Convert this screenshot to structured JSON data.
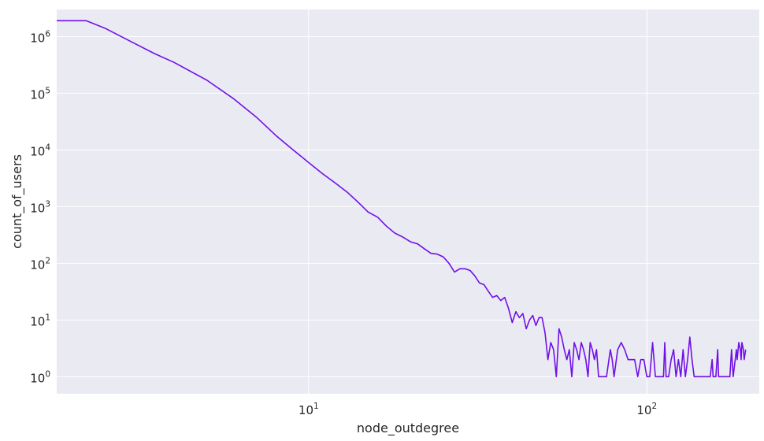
{
  "chart_data": {
    "type": "line",
    "title": "",
    "xlabel": "node_outdegree",
    "ylabel": "count_of_users",
    "x_scale": "log",
    "y_scale": "log",
    "xlim": [
      1.8,
      215
    ],
    "ylim": [
      0.5,
      3000000
    ],
    "x_ticks": [
      {
        "value": 10,
        "base": "10",
        "exp": "1"
      },
      {
        "value": 100,
        "base": "10",
        "exp": "2"
      }
    ],
    "y_ticks": [
      {
        "value": 1,
        "base": "10",
        "exp": "0"
      },
      {
        "value": 10,
        "base": "10",
        "exp": "1"
      },
      {
        "value": 100,
        "base": "10",
        "exp": "2"
      },
      {
        "value": 1000,
        "base": "10",
        "exp": "3"
      },
      {
        "value": 10000,
        "base": "10",
        "exp": "4"
      },
      {
        "value": 100000,
        "base": "10",
        "exp": "5"
      },
      {
        "value": 1000000,
        "base": "10",
        "exp": "6"
      }
    ],
    "grid": true,
    "background": "#EAEAF2",
    "series": [
      {
        "color": "#7010E8",
        "points": [
          [
            1.8,
            1900000
          ],
          [
            2,
            1900000
          ],
          [
            2.2,
            1900000
          ],
          [
            2.5,
            1400000
          ],
          [
            3,
            800000
          ],
          [
            3.5,
            500000
          ],
          [
            4,
            350000
          ],
          [
            5,
            170000
          ],
          [
            6,
            80000
          ],
          [
            7,
            38000
          ],
          [
            8,
            18000
          ],
          [
            9,
            10000
          ],
          [
            10,
            6000
          ],
          [
            11,
            3800
          ],
          [
            12,
            2600
          ],
          [
            13,
            1800
          ],
          [
            14,
            1200
          ],
          [
            15,
            800
          ],
          [
            16,
            650
          ],
          [
            17,
            450
          ],
          [
            18,
            340
          ],
          [
            19,
            290
          ],
          [
            20,
            240
          ],
          [
            21,
            220
          ],
          [
            22,
            180
          ],
          [
            23,
            150
          ],
          [
            24,
            145
          ],
          [
            25,
            130
          ],
          [
            26,
            100
          ],
          [
            27,
            70
          ],
          [
            28,
            80
          ],
          [
            29,
            80
          ],
          [
            30,
            75
          ],
          [
            31,
            60
          ],
          [
            32,
            45
          ],
          [
            33,
            42
          ],
          [
            34,
            32
          ],
          [
            35,
            25
          ],
          [
            36,
            27
          ],
          [
            37,
            22
          ],
          [
            38,
            25
          ],
          [
            39,
            16
          ],
          [
            40,
            9
          ],
          [
            41,
            14
          ],
          [
            42,
            11
          ],
          [
            43,
            13
          ],
          [
            44,
            7
          ],
          [
            45,
            10
          ],
          [
            46,
            12
          ],
          [
            47,
            8
          ],
          [
            48,
            11
          ],
          [
            49,
            11
          ],
          [
            50,
            6
          ],
          [
            51,
            2
          ],
          [
            52,
            4
          ],
          [
            53,
            3
          ],
          [
            54,
            1
          ],
          [
            55,
            7
          ],
          [
            56,
            5
          ],
          [
            57,
            3
          ],
          [
            58,
            2
          ],
          [
            59,
            3
          ],
          [
            60,
            1
          ],
          [
            61,
            4
          ],
          [
            62,
            3
          ],
          [
            63,
            2
          ],
          [
            64,
            4
          ],
          [
            65,
            3
          ],
          [
            66,
            2
          ],
          [
            67,
            1
          ],
          [
            68,
            4
          ],
          [
            69,
            3
          ],
          [
            70,
            2
          ],
          [
            71,
            3
          ],
          [
            72,
            1
          ],
          [
            74,
            1
          ],
          [
            76,
            1
          ],
          [
            78,
            3
          ],
          [
            79,
            2
          ],
          [
            80,
            1
          ],
          [
            82,
            3
          ],
          [
            84,
            4
          ],
          [
            86,
            3
          ],
          [
            88,
            2
          ],
          [
            90,
            2
          ],
          [
            92,
            2
          ],
          [
            94,
            1
          ],
          [
            96,
            2
          ],
          [
            98,
            2
          ],
          [
            100,
            1
          ],
          [
            102,
            1
          ],
          [
            104,
            4
          ],
          [
            106,
            1
          ],
          [
            108,
            1
          ],
          [
            110,
            1
          ],
          [
            112,
            1
          ],
          [
            113,
            4
          ],
          [
            114,
            1
          ],
          [
            116,
            1
          ],
          [
            118,
            2
          ],
          [
            120,
            3
          ],
          [
            122,
            1
          ],
          [
            124,
            2
          ],
          [
            126,
            1
          ],
          [
            128,
            3
          ],
          [
            130,
            1
          ],
          [
            132,
            2
          ],
          [
            134,
            5
          ],
          [
            136,
            2
          ],
          [
            138,
            1
          ],
          [
            142,
            1
          ],
          [
            146,
            1
          ],
          [
            150,
            1
          ],
          [
            154,
            1
          ],
          [
            156,
            2
          ],
          [
            157,
            1
          ],
          [
            160,
            1
          ],
          [
            162,
            3
          ],
          [
            163,
            1
          ],
          [
            170,
            1
          ],
          [
            176,
            1
          ],
          [
            178,
            3
          ],
          [
            180,
            1
          ],
          [
            184,
            3
          ],
          [
            185,
            2
          ],
          [
            187,
            4
          ],
          [
            189,
            3
          ],
          [
            190,
            2
          ],
          [
            191,
            4
          ],
          [
            193,
            3
          ],
          [
            194,
            2
          ],
          [
            196,
            3
          ]
        ]
      }
    ]
  }
}
